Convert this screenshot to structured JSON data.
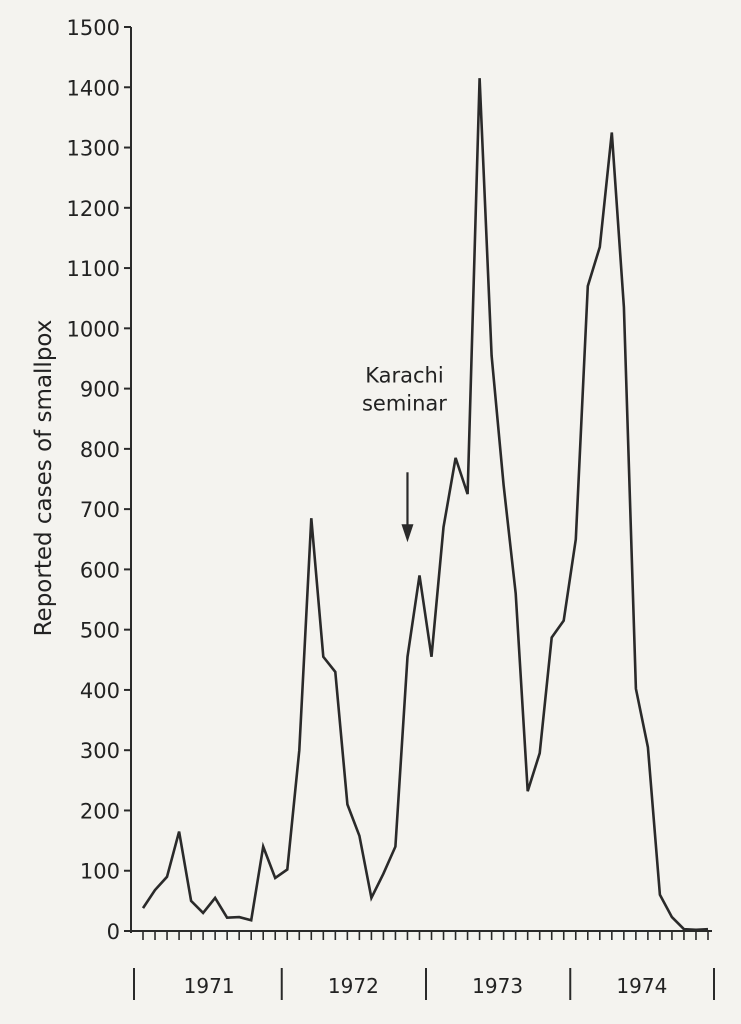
{
  "chart_data": {
    "type": "line",
    "title": "",
    "ylabel": "Reported cases of smallpox",
    "xlabel": "",
    "ylim": [
      0,
      1500
    ],
    "yticks": [
      0,
      100,
      200,
      300,
      400,
      500,
      600,
      700,
      800,
      900,
      1000,
      1100,
      1200,
      1300,
      1400,
      1500
    ],
    "years": [
      "1971",
      "1972",
      "1973",
      "1974"
    ],
    "months_per_year": 12,
    "grid": false,
    "line_color": "#2a2a2a",
    "x": [
      "1971-01",
      "1971-02",
      "1971-03",
      "1971-04",
      "1971-05",
      "1971-06",
      "1971-07",
      "1971-08",
      "1971-09",
      "1971-10",
      "1971-11",
      "1971-12",
      "1972-01",
      "1972-02",
      "1972-03",
      "1972-04",
      "1972-05",
      "1972-06",
      "1972-07",
      "1972-08",
      "1972-09",
      "1972-10",
      "1972-11",
      "1972-12",
      "1973-01",
      "1973-02",
      "1973-03",
      "1973-04",
      "1973-05",
      "1973-06",
      "1973-07",
      "1973-08",
      "1973-09",
      "1973-10",
      "1973-11",
      "1973-12",
      "1974-01",
      "1974-02",
      "1974-03",
      "1974-04",
      "1974-05",
      "1974-06",
      "1974-07",
      "1974-08",
      "1974-09",
      "1974-10",
      "1974-11",
      "1974-12"
    ],
    "series": [
      {
        "values": [
          38,
          68,
          90,
          165,
          50,
          30,
          55,
          22,
          23,
          18,
          140,
          88,
          102,
          300,
          685,
          455,
          430,
          210,
          158,
          55,
          95,
          140,
          455,
          590,
          455,
          670,
          785,
          725,
          1415,
          955,
          740,
          560,
          232,
          295,
          487,
          515,
          650,
          1070,
          1135,
          1325,
          1035,
          402,
          305,
          60,
          23,
          3,
          2,
          3
        ]
      }
    ],
    "annotations": [
      {
        "text_lines": [
          "Karachi",
          "seminar"
        ],
        "x": "1972-11",
        "y": 645,
        "type": "arrow"
      }
    ]
  }
}
